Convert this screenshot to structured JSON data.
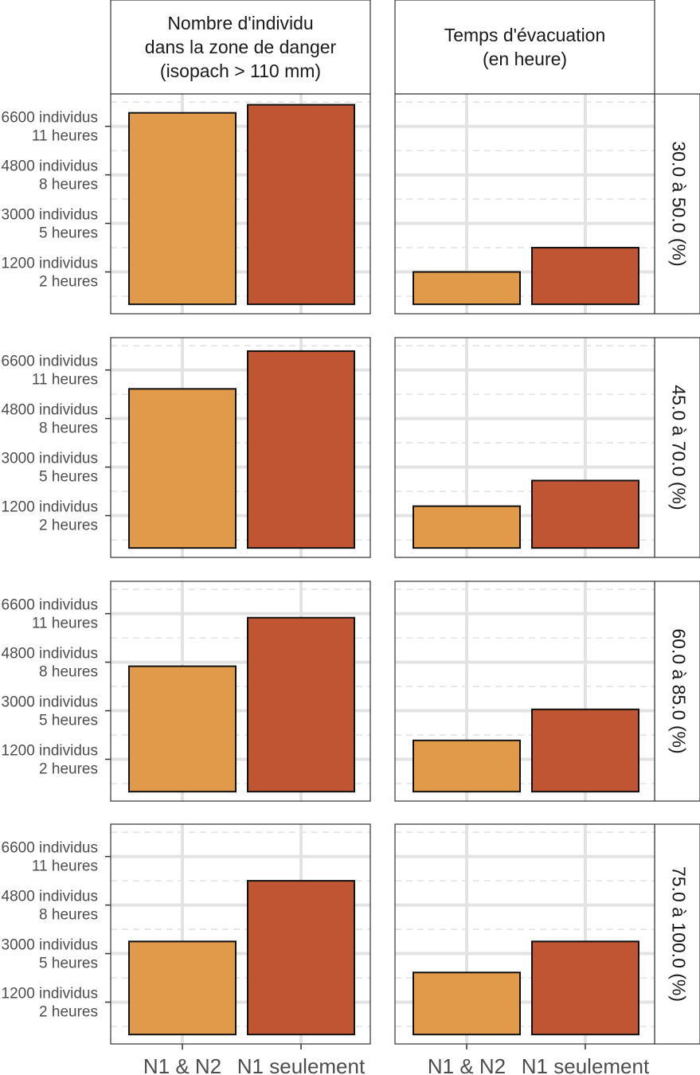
{
  "chart_data": {
    "type": "bar",
    "categories": [
      "N1 & N2",
      "N1 seulement"
    ],
    "colors": {
      "N1 & N2": "#E09A4A",
      "N1 seulement": "#BF5533"
    },
    "columns": [
      {
        "id": "individus",
        "title_lines": [
          "Nombre d'individu",
          "dans la zone de danger",
          "(isopach > 110 mm)"
        ]
      },
      {
        "id": "temps",
        "title_lines": [
          "Temps d'évacuation",
          "(en heure)"
        ]
      }
    ],
    "rows": [
      {
        "label": "30.0 à 50.0 (%)"
      },
      {
        "label": "45.0 à 70.0 (%)"
      },
      {
        "label": "60.0 à 85.0 (%)"
      },
      {
        "label": "75.0 à 100.0 (%)"
      }
    ],
    "y_ticks": [
      {
        "value": 1200,
        "lines": [
          "1200 individus",
          "2 heures"
        ]
      },
      {
        "value": 3000,
        "lines": [
          "3000 individus",
          "5 heures"
        ]
      },
      {
        "value": 4800,
        "lines": [
          "4800 individus",
          "8 heures"
        ]
      },
      {
        "value": 6600,
        "lines": [
          "6600 individus",
          "11 heures"
        ]
      }
    ],
    "ylim": [
      -350,
      7800
    ],
    "values": {
      "individus": [
        [
          7100,
          7400
        ],
        [
          5900,
          7300
        ],
        [
          4650,
          6450
        ],
        [
          3450,
          5700
        ]
      ],
      "temps": [
        [
          1200,
          2100
        ],
        [
          1550,
          2500
        ],
        [
          1900,
          3050
        ],
        [
          2300,
          3450
        ]
      ]
    }
  }
}
